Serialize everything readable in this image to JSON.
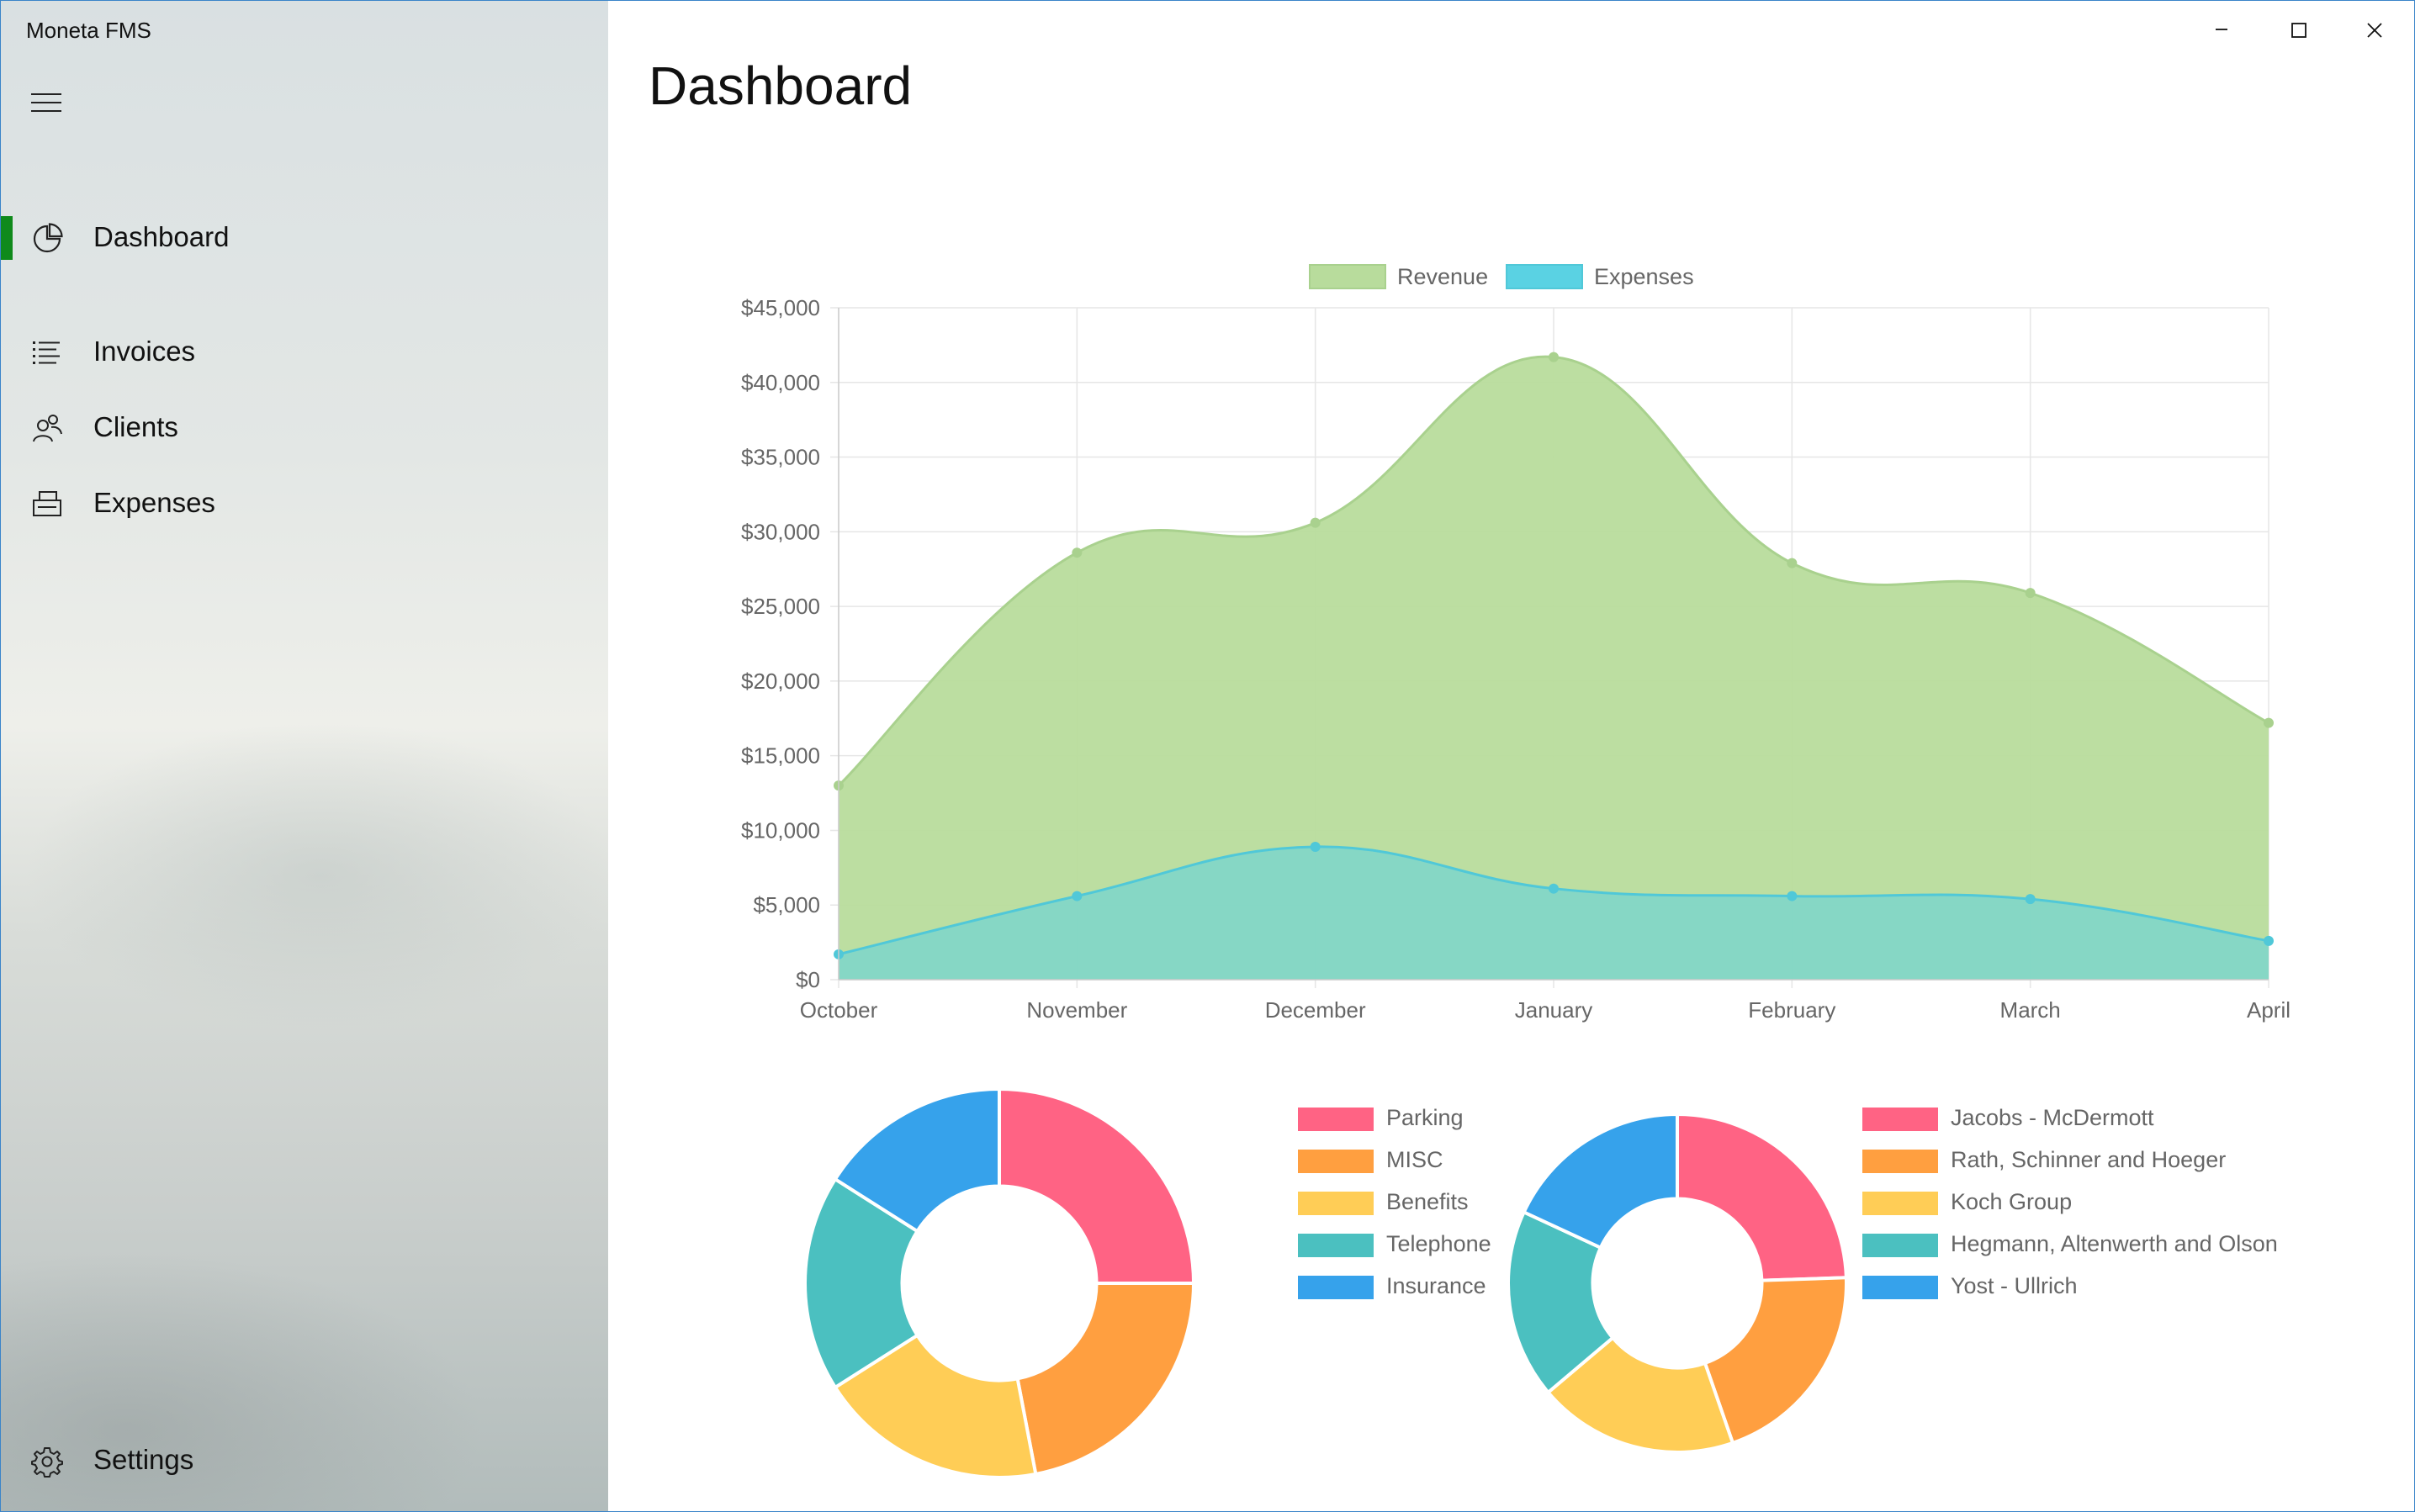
{
  "app": {
    "title": "Moneta FMS"
  },
  "window_controls": {
    "minimize": "minimize",
    "maximize": "maximize",
    "close": "close"
  },
  "sidebar": {
    "items": [
      {
        "label": "Dashboard",
        "icon": "pie-chart-icon",
        "selected": true
      },
      {
        "label": "Invoices",
        "icon": "list-icon",
        "selected": false
      },
      {
        "label": "Clients",
        "icon": "people-icon",
        "selected": false
      },
      {
        "label": "Expenses",
        "icon": "printer-icon",
        "selected": false
      }
    ],
    "settings": {
      "label": "Settings",
      "icon": "gear-icon"
    },
    "accent_color": "#0f8a1b"
  },
  "main": {
    "title": "Dashboard"
  },
  "chart_data": [
    {
      "type": "area",
      "categories": [
        "October",
        "November",
        "December",
        "January",
        "February",
        "March",
        "April"
      ],
      "series": [
        {
          "name": "Revenue",
          "values": [
            13000,
            28600,
            30600,
            41700,
            27900,
            25900,
            17200
          ],
          "color": "#b8dc9c",
          "border": "#a9d18e"
        },
        {
          "name": "Expenses",
          "values": [
            1700,
            5600,
            8900,
            6100,
            5600,
            5400,
            2600
          ],
          "color": "#5ad2e3",
          "border": "#50c8d8"
        }
      ],
      "ylim": [
        0,
        45000
      ],
      "yticks": [
        "$0",
        "$5,000",
        "$10,000",
        "$15,000",
        "$20,000",
        "$25,000",
        "$30,000",
        "$35,000",
        "$40,000",
        "$45,000"
      ],
      "grid": true,
      "legend": "top"
    },
    {
      "type": "pie",
      "labels": [
        "Parking",
        "MISC",
        "Benefits",
        "Telephone",
        "Insurance"
      ],
      "values": [
        25,
        22,
        19,
        18,
        16
      ],
      "colors": [
        "#ff6384",
        "#ff9f40",
        "#ffcd56",
        "#4bc0c0",
        "#36a2eb"
      ],
      "legend": "right"
    },
    {
      "type": "pie",
      "labels": [
        "Jacobs - McDermott",
        "Rath, Schinner and Hoeger",
        "Koch Group",
        "Hegmann, Altenwerth and Olson",
        "Yost - Ullrich"
      ],
      "values": [
        23,
        19,
        18,
        17,
        17
      ],
      "colors": [
        "#ff6384",
        "#ff9f40",
        "#ffcd56",
        "#4bc0c0",
        "#36a2eb"
      ],
      "legend": "right"
    }
  ]
}
